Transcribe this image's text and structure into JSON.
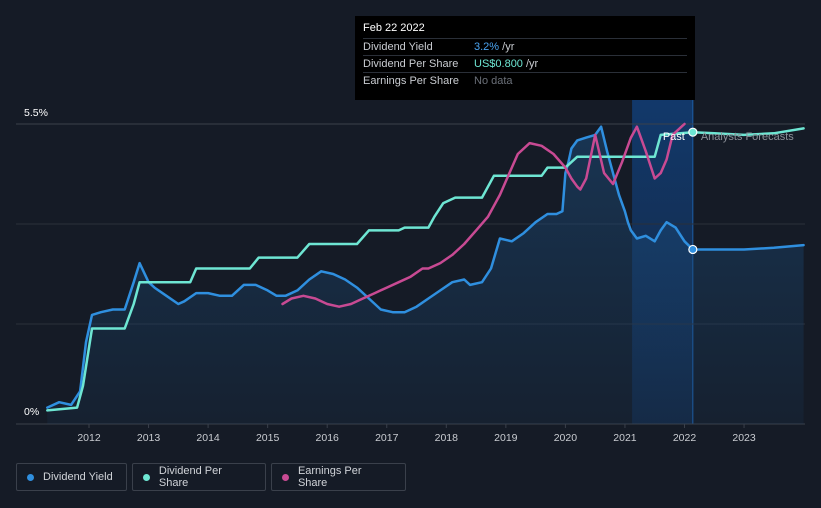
{
  "tooltip": {
    "date": "Feb 22 2022",
    "rows": [
      {
        "label": "Dividend Yield",
        "value": "3.2%",
        "suffix": " /yr"
      },
      {
        "label": "Dividend Per Share",
        "value": "US$0.800",
        "suffix": " /yr"
      },
      {
        "label": "Earnings Per Share",
        "value": "No data",
        "suffix": ""
      }
    ]
  },
  "chart_data": {
    "type": "line",
    "y_ticks": [
      "5.5%",
      "0%"
    ],
    "ylim": [
      0,
      5.5
    ],
    "xlim": [
      2011,
      2024
    ],
    "x_ticks": [
      "2012",
      "2013",
      "2014",
      "2015",
      "2016",
      "2017",
      "2018",
      "2019",
      "2020",
      "2021",
      "2022",
      "2023"
    ],
    "labels": {
      "past": "Past",
      "forecast": "Analysts Forecasts"
    },
    "grid": true,
    "series": [
      {
        "name": "Dividend Yield",
        "color": "#2f8fdf",
        "x": [
          2011.3,
          2011.5,
          2011.7,
          2011.85,
          2011.95,
          2012.05,
          2012.2,
          2012.4,
          2012.6,
          2012.75,
          2012.85,
          2013.0,
          2013.1,
          2013.3,
          2013.5,
          2013.6,
          2013.8,
          2014.0,
          2014.2,
          2014.4,
          2014.6,
          2014.8,
          2015.0,
          2015.15,
          2015.3,
          2015.5,
          2015.7,
          2015.9,
          2016.1,
          2016.3,
          2016.5,
          2016.7,
          2016.9,
          2017.1,
          2017.3,
          2017.5,
          2017.7,
          2017.9,
          2018.1,
          2018.3,
          2018.4,
          2018.6,
          2018.75,
          2018.9,
          2019.1,
          2019.3,
          2019.5,
          2019.7,
          2019.85,
          2019.95,
          2020.0,
          2020.05,
          2020.1,
          2020.2,
          2020.35,
          2020.5,
          2020.6,
          2020.7,
          2020.8,
          2020.9,
          2021.0,
          2021.05,
          2021.1,
          2021.2,
          2021.35,
          2021.5,
          2021.6,
          2021.7,
          2021.85,
          2022.0,
          2022.14,
          2022.5,
          2023.0,
          2023.5,
          2024.0
        ],
        "y": [
          0.3,
          0.4,
          0.35,
          0.6,
          1.5,
          2.0,
          2.05,
          2.1,
          2.1,
          2.6,
          2.95,
          2.6,
          2.5,
          2.35,
          2.2,
          2.25,
          2.4,
          2.4,
          2.35,
          2.35,
          2.55,
          2.55,
          2.45,
          2.35,
          2.35,
          2.45,
          2.65,
          2.8,
          2.75,
          2.65,
          2.5,
          2.3,
          2.1,
          2.05,
          2.05,
          2.15,
          2.3,
          2.45,
          2.6,
          2.65,
          2.55,
          2.6,
          2.85,
          3.4,
          3.35,
          3.5,
          3.7,
          3.85,
          3.85,
          3.9,
          4.6,
          4.8,
          5.05,
          5.2,
          5.25,
          5.3,
          5.45,
          5.0,
          4.6,
          4.2,
          3.9,
          3.7,
          3.55,
          3.4,
          3.45,
          3.35,
          3.55,
          3.7,
          3.6,
          3.35,
          3.2,
          3.2,
          3.2,
          3.23,
          3.28
        ]
      },
      {
        "name": "Dividend Per Share",
        "color": "#6ee6d3",
        "x": [
          2011.3,
          2011.8,
          2011.9,
          2012.05,
          2012.6,
          2012.75,
          2012.85,
          2013.7,
          2013.8,
          2014.7,
          2014.85,
          2015.5,
          2015.7,
          2016.5,
          2016.7,
          2017.2,
          2017.3,
          2017.7,
          2017.8,
          2017.95,
          2018.15,
          2018.6,
          2018.8,
          2019.6,
          2019.7,
          2020.0,
          2020.2,
          2021.5,
          2021.6,
          2022.14,
          2022.5,
          2023.0,
          2023.5,
          2024.0
        ],
        "y": [
          0.25,
          0.3,
          0.7,
          1.75,
          1.75,
          2.2,
          2.6,
          2.6,
          2.85,
          2.85,
          3.05,
          3.05,
          3.3,
          3.3,
          3.55,
          3.55,
          3.6,
          3.6,
          3.8,
          4.05,
          4.15,
          4.15,
          4.55,
          4.55,
          4.7,
          4.7,
          4.9,
          4.9,
          5.3,
          5.35,
          5.33,
          5.3,
          5.33,
          5.42
        ]
      },
      {
        "name": "Earnings Per Share",
        "color": "#c84a93",
        "x": [
          2015.25,
          2015.4,
          2015.6,
          2015.8,
          2016.0,
          2016.2,
          2016.4,
          2016.6,
          2016.8,
          2017.0,
          2017.2,
          2017.4,
          2017.6,
          2017.7,
          2017.9,
          2018.1,
          2018.3,
          2018.5,
          2018.7,
          2018.9,
          2019.1,
          2019.2,
          2019.4,
          2019.6,
          2019.8,
          2020.0,
          2020.1,
          2020.2,
          2020.25,
          2020.35,
          2020.5,
          2020.65,
          2020.8,
          2020.95,
          2021.1,
          2021.2,
          2021.35,
          2021.5,
          2021.6,
          2021.7,
          2021.8,
          2021.95,
          2022.0
        ],
        "y": [
          2.2,
          2.3,
          2.35,
          2.3,
          2.2,
          2.15,
          2.2,
          2.3,
          2.4,
          2.5,
          2.6,
          2.7,
          2.85,
          2.85,
          2.95,
          3.1,
          3.3,
          3.55,
          3.8,
          4.2,
          4.7,
          4.95,
          5.15,
          5.1,
          4.95,
          4.7,
          4.5,
          4.35,
          4.3,
          4.5,
          5.3,
          4.6,
          4.4,
          4.8,
          5.25,
          5.45,
          5.0,
          4.5,
          4.6,
          4.85,
          5.3,
          5.45,
          5.5
        ]
      }
    ],
    "markers": [
      {
        "series": "Dividend Yield",
        "x": 2022.14,
        "y": 3.2
      },
      {
        "series": "Dividend Per Share",
        "x": 2022.14,
        "y": 5.35
      }
    ]
  },
  "legend": [
    {
      "label": "Dividend Yield",
      "color": "#2f8fdf"
    },
    {
      "label": "Dividend Per Share",
      "color": "#6ee6d3"
    },
    {
      "label": "Earnings Per Share",
      "color": "#c84a93"
    }
  ]
}
